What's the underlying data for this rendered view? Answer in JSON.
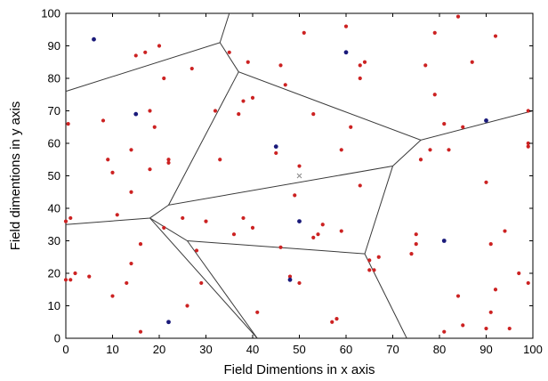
{
  "chart_data": {
    "type": "scatter",
    "title": "",
    "xlabel": "Field Dimentions in x axis",
    "ylabel": "Field dimentions in y axis",
    "xlim": [
      0,
      100
    ],
    "ylim": [
      0,
      100
    ],
    "x_ticks": [
      "0",
      "10",
      "20",
      "30",
      "40",
      "50",
      "60",
      "70",
      "80",
      "90",
      "100"
    ],
    "y_ticks": [
      "0",
      "10",
      "20",
      "30",
      "40",
      "50",
      "60",
      "70",
      "80",
      "90",
      "100"
    ],
    "grid": false,
    "colors": {
      "node": "#cc2222",
      "cluster_head": "#1a1a7a",
      "sink": "#888888",
      "boundary": "#3a3a3a"
    },
    "series": [
      {
        "role": "nodes",
        "points": [
          [
            0.5,
            66
          ],
          [
            0,
            36
          ],
          [
            0,
            18
          ],
          [
            1,
            37
          ],
          [
            1,
            18
          ],
          [
            2,
            20
          ],
          [
            5,
            19
          ],
          [
            8,
            67
          ],
          [
            9,
            55
          ],
          [
            10,
            13
          ],
          [
            10,
            51
          ],
          [
            11,
            38
          ],
          [
            13,
            17
          ],
          [
            14,
            45
          ],
          [
            14,
            58
          ],
          [
            14,
            23
          ],
          [
            15,
            87
          ],
          [
            16,
            29
          ],
          [
            16,
            2
          ],
          [
            17,
            88
          ],
          [
            18,
            52
          ],
          [
            18,
            70
          ],
          [
            19,
            65
          ],
          [
            20,
            90
          ],
          [
            21,
            34
          ],
          [
            21,
            80
          ],
          [
            22,
            55
          ],
          [
            22,
            54
          ],
          [
            25,
            37
          ],
          [
            26,
            10
          ],
          [
            27,
            83
          ],
          [
            28,
            27
          ],
          [
            29,
            17
          ],
          [
            30,
            36
          ],
          [
            32,
            70
          ],
          [
            33,
            55
          ],
          [
            35,
            88
          ],
          [
            36,
            32
          ],
          [
            37,
            69
          ],
          [
            38,
            73
          ],
          [
            38,
            37
          ],
          [
            39,
            85
          ],
          [
            40,
            74
          ],
          [
            40,
            34
          ],
          [
            41,
            8
          ],
          [
            45,
            57
          ],
          [
            46,
            84
          ],
          [
            46,
            28
          ],
          [
            47,
            78
          ],
          [
            48,
            19
          ],
          [
            49,
            44
          ],
          [
            50,
            53
          ],
          [
            50,
            17
          ],
          [
            51,
            94
          ],
          [
            53,
            69
          ],
          [
            53,
            31
          ],
          [
            54,
            32
          ],
          [
            55,
            35
          ],
          [
            57,
            5
          ],
          [
            58,
            6
          ],
          [
            59,
            33
          ],
          [
            59,
            58
          ],
          [
            60,
            96
          ],
          [
            61,
            65
          ],
          [
            63,
            80
          ],
          [
            63,
            47
          ],
          [
            63,
            84
          ],
          [
            64,
            85
          ],
          [
            65,
            24
          ],
          [
            65,
            21
          ],
          [
            66,
            21
          ],
          [
            67,
            25
          ],
          [
            74,
            26
          ],
          [
            75,
            32
          ],
          [
            75,
            29
          ],
          [
            76,
            55
          ],
          [
            77,
            84
          ],
          [
            78,
            58
          ],
          [
            79,
            75
          ],
          [
            79,
            94
          ],
          [
            81,
            66
          ],
          [
            81,
            2
          ],
          [
            82,
            58
          ],
          [
            84,
            13
          ],
          [
            84,
            99
          ],
          [
            85,
            65
          ],
          [
            85,
            4
          ],
          [
            87,
            85
          ],
          [
            90,
            3
          ],
          [
            90,
            48
          ],
          [
            91,
            8
          ],
          [
            91,
            29
          ],
          [
            92,
            93
          ],
          [
            92,
            15
          ],
          [
            94,
            33
          ],
          [
            95,
            3
          ],
          [
            97,
            20
          ],
          [
            99,
            59
          ],
          [
            99,
            60
          ],
          [
            99,
            70
          ],
          [
            99,
            17
          ]
        ]
      },
      {
        "role": "cluster_heads",
        "points": [
          [
            6,
            92
          ],
          [
            15,
            69
          ],
          [
            22,
            5
          ],
          [
            45,
            59
          ],
          [
            48,
            18
          ],
          [
            50,
            36
          ],
          [
            60,
            88
          ],
          [
            81,
            30
          ],
          [
            90,
            67
          ]
        ]
      },
      {
        "role": "sink",
        "points": [
          [
            50,
            50
          ]
        ]
      }
    ],
    "region_boundaries": [
      [
        [
          0,
          76
        ],
        [
          33,
          91
        ],
        [
          35,
          100
        ]
      ],
      [
        [
          33,
          91
        ],
        [
          37,
          82
        ],
        [
          76,
          61
        ],
        [
          100,
          70
        ]
      ],
      [
        [
          37,
          82
        ],
        [
          22,
          41
        ],
        [
          70,
          53
        ],
        [
          76,
          61
        ]
      ],
      [
        [
          0,
          35
        ],
        [
          18,
          37
        ],
        [
          22,
          41
        ]
      ],
      [
        [
          18,
          37
        ],
        [
          26,
          30
        ],
        [
          64,
          26
        ],
        [
          70,
          53
        ]
      ],
      [
        [
          18,
          37
        ],
        [
          41,
          0
        ]
      ],
      [
        [
          26,
          30
        ],
        [
          41,
          0
        ]
      ],
      [
        [
          64,
          26
        ],
        [
          73,
          0
        ]
      ]
    ]
  }
}
